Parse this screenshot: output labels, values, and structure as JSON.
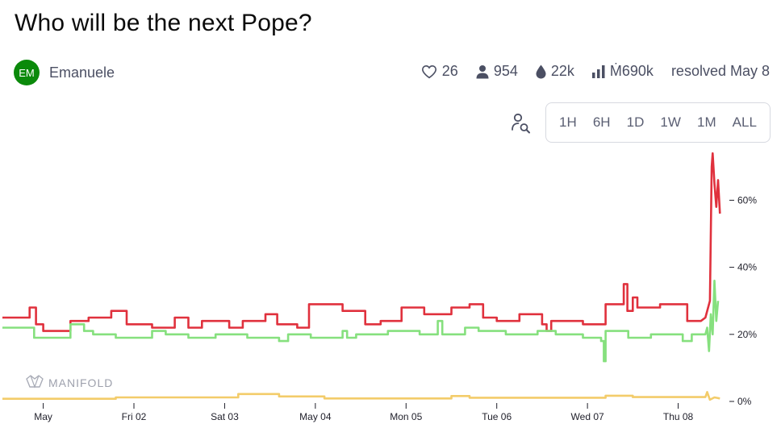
{
  "market": {
    "title": "Who will be the next Pope?",
    "creator": {
      "initials": "EM",
      "name": "Emanuele"
    },
    "stats": {
      "likes": "26",
      "traders": "954",
      "liquidity": "22k",
      "volume": "Ṁ690k",
      "status": "resolved May 8"
    }
  },
  "range_buttons": [
    "1H",
    "6H",
    "1D",
    "1W",
    "1M",
    "ALL"
  ],
  "watermark": "MANIFOLD",
  "icons": [
    "heart-icon",
    "user-icon",
    "droplet-icon",
    "bar-chart-icon",
    "search-person-icon",
    "manifold-logo-icon"
  ],
  "colors": {
    "red": "#e0313d",
    "green": "#86e07e",
    "yellow": "#f3cc6a",
    "avatar": "#0b8a0b"
  },
  "chart_data": {
    "type": "line",
    "title": "",
    "xlabel": "",
    "ylabel": "",
    "x_ticks": [
      "May",
      "Fri 02",
      "Sat 03",
      "May 04",
      "Mon 05",
      "Tue 06",
      "Wed 07",
      "Thu 08"
    ],
    "x_tick_values": [
      1.0,
      2.0,
      3.0,
      4.0,
      5.0,
      6.0,
      7.0,
      8.0
    ],
    "y_ticks": [
      "0%",
      "20%",
      "40%",
      "60%"
    ],
    "y_tick_values": [
      0,
      20,
      40,
      60
    ],
    "xlim": [
      0.55,
      8.6
    ],
    "ylim": [
      0,
      75
    ],
    "grid": false,
    "series": [
      {
        "color": "#e0313d",
        "points": [
          [
            0.55,
            25
          ],
          [
            0.85,
            25
          ],
          [
            0.85,
            28
          ],
          [
            0.92,
            28
          ],
          [
            0.92,
            23
          ],
          [
            1.0,
            23
          ],
          [
            1.0,
            21
          ],
          [
            1.3,
            21
          ],
          [
            1.3,
            24
          ],
          [
            1.5,
            24
          ],
          [
            1.5,
            25
          ],
          [
            1.75,
            25
          ],
          [
            1.75,
            27
          ],
          [
            1.92,
            27
          ],
          [
            1.92,
            23
          ],
          [
            2.2,
            23
          ],
          [
            2.2,
            22
          ],
          [
            2.45,
            22
          ],
          [
            2.45,
            25
          ],
          [
            2.6,
            25
          ],
          [
            2.6,
            22
          ],
          [
            2.75,
            22
          ],
          [
            2.75,
            24
          ],
          [
            3.05,
            24
          ],
          [
            3.05,
            22
          ],
          [
            3.2,
            22
          ],
          [
            3.2,
            24
          ],
          [
            3.45,
            24
          ],
          [
            3.45,
            26
          ],
          [
            3.58,
            26
          ],
          [
            3.58,
            23
          ],
          [
            3.8,
            23
          ],
          [
            3.8,
            22
          ],
          [
            3.93,
            22
          ],
          [
            3.93,
            29
          ],
          [
            4.3,
            29
          ],
          [
            4.3,
            27
          ],
          [
            4.55,
            27
          ],
          [
            4.55,
            23
          ],
          [
            4.72,
            23
          ],
          [
            4.72,
            24
          ],
          [
            4.95,
            24
          ],
          [
            4.95,
            28
          ],
          [
            5.2,
            28
          ],
          [
            5.2,
            26
          ],
          [
            5.5,
            26
          ],
          [
            5.5,
            28
          ],
          [
            5.7,
            28
          ],
          [
            5.7,
            29
          ],
          [
            5.85,
            29
          ],
          [
            5.85,
            25
          ],
          [
            6.0,
            25
          ],
          [
            6.0,
            24
          ],
          [
            6.25,
            24
          ],
          [
            6.25,
            26
          ],
          [
            6.5,
            26
          ],
          [
            6.5,
            23
          ],
          [
            6.55,
            23
          ],
          [
            6.55,
            21
          ],
          [
            6.6,
            21
          ],
          [
            6.6,
            24
          ],
          [
            6.95,
            24
          ],
          [
            6.95,
            23
          ],
          [
            7.2,
            23
          ],
          [
            7.2,
            29
          ],
          [
            7.4,
            29
          ],
          [
            7.4,
            35
          ],
          [
            7.44,
            35
          ],
          [
            7.44,
            27
          ],
          [
            7.5,
            27
          ],
          [
            7.5,
            31
          ],
          [
            7.55,
            31
          ],
          [
            7.55,
            28
          ],
          [
            7.8,
            28
          ],
          [
            7.8,
            29
          ],
          [
            8.1,
            29
          ],
          [
            8.1,
            24
          ],
          [
            8.25,
            24
          ],
          [
            8.3,
            25
          ],
          [
            8.35,
            30
          ],
          [
            8.37,
            70
          ],
          [
            8.38,
            74
          ],
          [
            8.4,
            65
          ],
          [
            8.42,
            58
          ],
          [
            8.44,
            66
          ],
          [
            8.46,
            56
          ]
        ]
      },
      {
        "color": "#86e07e",
        "points": [
          [
            0.55,
            22
          ],
          [
            0.9,
            22
          ],
          [
            0.9,
            19
          ],
          [
            1.3,
            19
          ],
          [
            1.3,
            23
          ],
          [
            1.45,
            23
          ],
          [
            1.45,
            21
          ],
          [
            1.55,
            21
          ],
          [
            1.55,
            20
          ],
          [
            1.8,
            20
          ],
          [
            1.8,
            19
          ],
          [
            2.2,
            19
          ],
          [
            2.2,
            21
          ],
          [
            2.35,
            21
          ],
          [
            2.35,
            20
          ],
          [
            2.6,
            20
          ],
          [
            2.6,
            19
          ],
          [
            2.9,
            19
          ],
          [
            2.9,
            20
          ],
          [
            3.25,
            20
          ],
          [
            3.25,
            19
          ],
          [
            3.6,
            19
          ],
          [
            3.6,
            18
          ],
          [
            3.7,
            18
          ],
          [
            3.7,
            20
          ],
          [
            3.95,
            20
          ],
          [
            3.95,
            19
          ],
          [
            4.3,
            19
          ],
          [
            4.3,
            21
          ],
          [
            4.35,
            21
          ],
          [
            4.35,
            19
          ],
          [
            4.45,
            19
          ],
          [
            4.45,
            20
          ],
          [
            4.8,
            20
          ],
          [
            4.8,
            21
          ],
          [
            5.15,
            21
          ],
          [
            5.15,
            20
          ],
          [
            5.35,
            20
          ],
          [
            5.35,
            24
          ],
          [
            5.4,
            24
          ],
          [
            5.4,
            20
          ],
          [
            5.65,
            20
          ],
          [
            5.65,
            22
          ],
          [
            5.8,
            22
          ],
          [
            5.8,
            21
          ],
          [
            6.1,
            21
          ],
          [
            6.1,
            20
          ],
          [
            6.45,
            20
          ],
          [
            6.45,
            21
          ],
          [
            6.65,
            21
          ],
          [
            6.65,
            20
          ],
          [
            6.95,
            20
          ],
          [
            6.95,
            19
          ],
          [
            7.15,
            19
          ],
          [
            7.15,
            18
          ],
          [
            7.18,
            18
          ],
          [
            7.18,
            12
          ],
          [
            7.2,
            12
          ],
          [
            7.2,
            21
          ],
          [
            7.45,
            21
          ],
          [
            7.45,
            19
          ],
          [
            7.7,
            19
          ],
          [
            7.7,
            20
          ],
          [
            8.05,
            20
          ],
          [
            8.05,
            18
          ],
          [
            8.15,
            18
          ],
          [
            8.15,
            20
          ],
          [
            8.3,
            20
          ],
          [
            8.32,
            22
          ],
          [
            8.34,
            15
          ],
          [
            8.36,
            26
          ],
          [
            8.38,
            20
          ],
          [
            8.4,
            36
          ],
          [
            8.42,
            24
          ],
          [
            8.44,
            30
          ]
        ]
      },
      {
        "color": "#f3cc6a",
        "points": [
          [
            0.55,
            0.8
          ],
          [
            1.8,
            0.8
          ],
          [
            1.8,
            1.2
          ],
          [
            3.15,
            1.2
          ],
          [
            3.15,
            2.2
          ],
          [
            3.6,
            2.2
          ],
          [
            3.6,
            1.5
          ],
          [
            4.1,
            1.5
          ],
          [
            4.1,
            0.9
          ],
          [
            5.5,
            0.9
          ],
          [
            5.5,
            1.6
          ],
          [
            5.7,
            1.6
          ],
          [
            5.7,
            1.1
          ],
          [
            7.2,
            1.1
          ],
          [
            7.2,
            1.7
          ],
          [
            7.5,
            1.7
          ],
          [
            7.5,
            1.3
          ],
          [
            8.3,
            1.3
          ],
          [
            8.32,
            2.8
          ],
          [
            8.35,
            0.5
          ],
          [
            8.4,
            1.2
          ],
          [
            8.46,
            0.9
          ]
        ]
      }
    ]
  }
}
